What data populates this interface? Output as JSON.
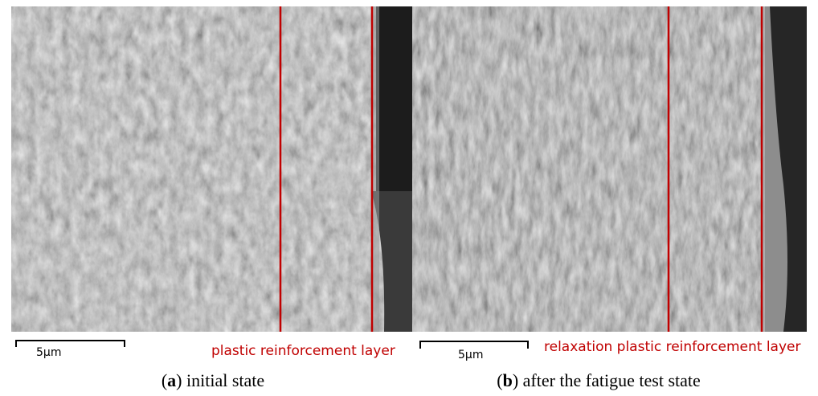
{
  "panels": [
    {
      "scale_bar": "5μm",
      "annotation": "plastic reinforcement layer",
      "caption": {
        "open": "(",
        "label": "a",
        "text": ") initial state"
      }
    },
    {
      "scale_bar": "5μm",
      "annotation": "relaxation plastic reinforcement layer",
      "caption": {
        "open": "(",
        "label": "b",
        "text": ") after the fatigue test state"
      }
    }
  ]
}
